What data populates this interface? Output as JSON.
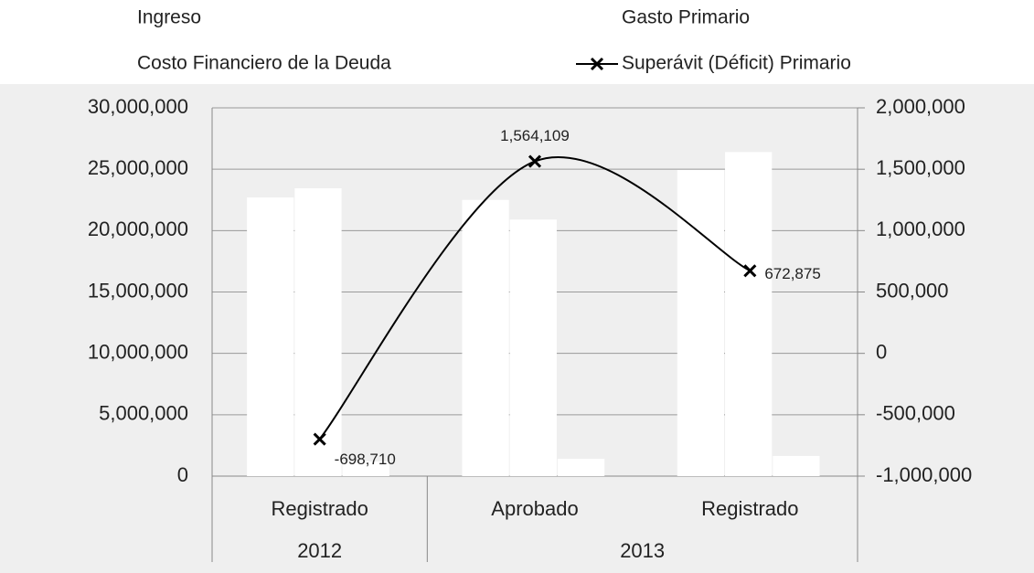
{
  "chart_data": {
    "type": "bar_line",
    "categories": [
      "Registrado",
      "Aprobado",
      "Registrado"
    ],
    "category_groups": [
      {
        "label": "2012",
        "span": 1
      },
      {
        "label": "2013",
        "span": 2
      }
    ],
    "series": [
      {
        "name": "Ingreso",
        "color": "#ffffff",
        "values": [
          22700000,
          22500000,
          24940000
        ]
      },
      {
        "name": "Gasto Primario",
        "color": "#ffffff",
        "values": [
          23450000,
          20900000,
          26400000
        ]
      },
      {
        "name": "Costo Financiero de la Deuda",
        "color": "#ffffff",
        "values": [
          1190000,
          1410000,
          1640000
        ]
      },
      {
        "name": "Superávit (Déficit) Primario",
        "color": "#000000",
        "type": "line",
        "axis": "y2",
        "marker": "x",
        "values": [
          -698710,
          1564109,
          672875
        ],
        "value_labels": [
          "-698,710",
          "1,564,109",
          "672,875"
        ]
      }
    ],
    "ylim": [
      0,
      30000000
    ],
    "yticks": [
      0,
      {
        "value": 5000000,
        "label": "5,000,000"
      },
      {
        "value": 10000000,
        "label": "10,000,000"
      },
      {
        "value": 15000000,
        "label": "15,000,000"
      },
      {
        "value": 20000000,
        "label": "20,000,000"
      },
      {
        "value": 25000000,
        "label": "25,000,000"
      },
      {
        "value": 30000000,
        "label": "30,000,000"
      }
    ],
    "y2lim": [
      -1000000,
      2000000
    ],
    "y2ticks": [
      {
        "value": -1000000,
        "label": "-1,000,000"
      },
      {
        "value": -500000,
        "label": "-500,000"
      },
      0,
      {
        "value": 500000,
        "label": "500,000"
      },
      {
        "value": 1000000,
        "label": "1,000,000"
      },
      {
        "value": 1500000,
        "label": "1,500,000"
      },
      {
        "value": 2000000,
        "label": "2,000,000"
      }
    ],
    "grid": true,
    "legend": "top"
  }
}
